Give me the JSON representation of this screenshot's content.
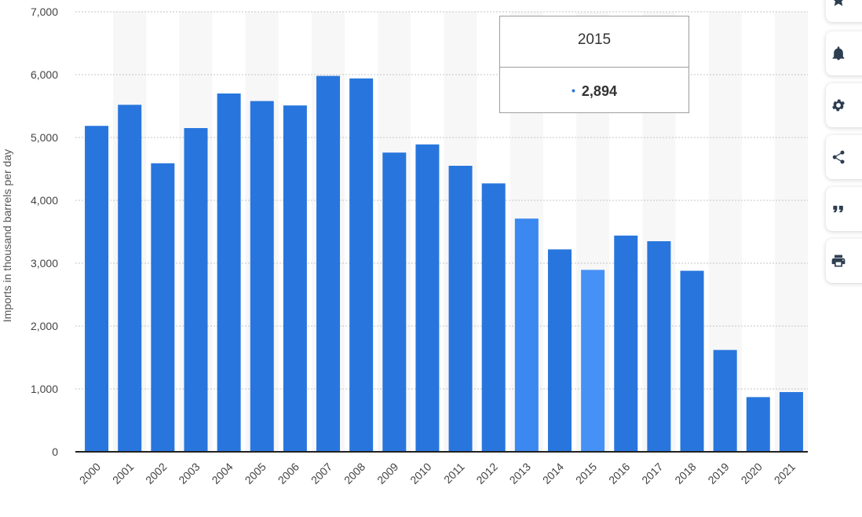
{
  "chart_data": {
    "type": "bar",
    "categories": [
      "2000",
      "2001",
      "2002",
      "2003",
      "2004",
      "2005",
      "2006",
      "2007",
      "2008",
      "2009",
      "2010",
      "2011",
      "2012",
      "2013",
      "2014",
      "2015",
      "2016",
      "2017",
      "2018",
      "2019",
      "2020",
      "2021"
    ],
    "values": [
      5185,
      5520,
      4590,
      5150,
      5700,
      5580,
      5510,
      5980,
      5940,
      4760,
      4890,
      4550,
      4270,
      3710,
      3220,
      2894,
      3440,
      3350,
      2880,
      1620,
      870,
      950
    ],
    "title": "",
    "xlabel": "",
    "ylabel": "Imports in thousand barrels per day",
    "ylim": [
      0,
      7000
    ],
    "yticks": [
      0,
      1000,
      2000,
      3000,
      4000,
      5000,
      6000,
      7000
    ],
    "ytick_labels": [
      "0",
      "1,000",
      "2,000",
      "3,000",
      "4,000",
      "5,000",
      "6,000",
      "7,000"
    ],
    "grid": true,
    "colors": {
      "bar": "#2876dd",
      "hover": "#3b88f0",
      "highlight": "#4691f5"
    },
    "highlighted": "2015",
    "hovered": "2013"
  },
  "tooltip": {
    "title": "2015",
    "value": "2,894",
    "bullet": "•"
  },
  "toolbar": [
    {
      "name": "favorite-button",
      "icon": "star-icon"
    },
    {
      "name": "notification-button",
      "icon": "bell-icon"
    },
    {
      "name": "settings-button",
      "icon": "gear-icon"
    },
    {
      "name": "share-button",
      "icon": "share-icon"
    },
    {
      "name": "cite-button",
      "icon": "quote-icon"
    },
    {
      "name": "print-button",
      "icon": "print-icon"
    }
  ]
}
